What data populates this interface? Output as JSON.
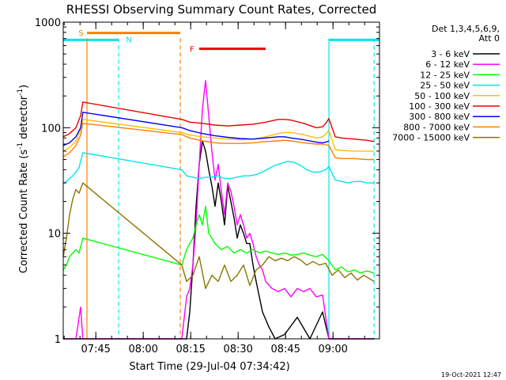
{
  "chart_data": {
    "type": "line",
    "title": "RHESSI Observing Summary Count Rates, Corrected",
    "xlabel": "Start Time (29-Jul-04 07:34:42)",
    "ylabel_main": "Corrected Count Rate (s",
    "ylabel_sup1": "-1",
    "ylabel_mid": " detector",
    "ylabel_sup2": "-1",
    "ylabel_end": ")",
    "yscale": "log",
    "ylim": [
      1,
      1000
    ],
    "xlim_minutes": [
      0,
      100
    ],
    "x_unit": "minutes after 07:34:42",
    "y_ticks": [
      {
        "value": 1,
        "label": "1"
      },
      {
        "value": 10,
        "label": "10"
      },
      {
        "value": 100,
        "label": "100"
      },
      {
        "value": 1000,
        "label": "1000"
      }
    ],
    "x_ticks": [
      {
        "minute": 10.3,
        "label": "07:45"
      },
      {
        "minute": 25.3,
        "label": "08:00"
      },
      {
        "minute": 40.3,
        "label": "08:15"
      },
      {
        "minute": 55.3,
        "label": "08:30"
      },
      {
        "minute": 70.3,
        "label": "08:45"
      },
      {
        "minute": 85.3,
        "label": "09:00"
      }
    ],
    "legend_header": [
      "Det 1,3,4,5,6,9,",
      "Att 0"
    ],
    "legend_position": "right",
    "footer_date": "19-Oct-2021 12:47",
    "flag_bars": [
      {
        "label": "S",
        "color": "#ff7f00",
        "start": 7.5,
        "end": 37.0,
        "level": 790
      },
      {
        "label": "N",
        "color": "#00e5ee",
        "start": 0,
        "end": 17.5,
        "level": 680
      },
      {
        "label": "N",
        "color": "#00e5ee",
        "start": 84.0,
        "end": 100,
        "level": 680
      },
      {
        "label": "F",
        "color": "#ee0000",
        "start": 43.0,
        "end": 64.0,
        "level": 560
      }
    ],
    "flag_labels": [
      {
        "text": "S",
        "color": "#ff7f00",
        "minute": 4.8,
        "level": 800
      },
      {
        "text": "N",
        "color": "#00e5ee",
        "minute": 19.8,
        "level": 690
      },
      {
        "text": "F",
        "color": "#ee0000",
        "minute": 40.0,
        "level": 560
      }
    ],
    "vertical_markers": [
      {
        "minute": 7.5,
        "color": "#ff7f00",
        "dashed": false
      },
      {
        "minute": 17.5,
        "color": "#00e5ee",
        "dashed": true
      },
      {
        "minute": 37.0,
        "color": "#ff7f00",
        "dashed": true
      },
      {
        "minute": 84.0,
        "color": "#00e5ee",
        "dashed": false
      },
      {
        "minute": 98.3,
        "color": "#00e5ee",
        "dashed": true
      }
    ],
    "series": [
      {
        "name": "3 - 6 keV",
        "color": "#000000",
        "x": [
          0,
          2,
          4,
          5.5,
          6.2,
          37.5,
          39,
          40,
          41,
          42,
          43,
          44,
          45,
          46,
          47,
          48,
          49,
          50,
          51,
          52,
          53,
          54,
          55,
          56,
          57,
          58,
          59,
          60,
          61,
          62,
          63,
          65,
          67,
          70,
          74,
          78,
          82,
          84,
          86,
          88,
          90,
          92,
          94,
          96,
          98.3
        ],
        "y": [
          1,
          1,
          1,
          1,
          1,
          1,
          1,
          1.8,
          5,
          18,
          45,
          75,
          60,
          40,
          28,
          18,
          30,
          20,
          12,
          28,
          20,
          14,
          9,
          12,
          10,
          8,
          8,
          5,
          3.5,
          2.5,
          1.8,
          1.3,
          1,
          1.1,
          1.6,
          1,
          1.8,
          1,
          1,
          1,
          1,
          1,
          1,
          1,
          1
        ]
      },
      {
        "name": "6 - 12 keV",
        "color": "#ff00ff",
        "x": [
          0,
          4,
          5.5,
          6.2,
          37.5,
          39,
          40,
          41,
          42,
          43,
          44,
          45,
          46,
          47,
          48,
          49,
          50,
          51,
          52,
          53,
          54,
          55,
          56,
          57,
          58,
          59,
          60,
          61,
          62,
          63,
          64,
          66,
          68,
          70,
          72,
          74,
          76,
          78,
          80,
          82,
          84,
          86,
          88,
          90,
          92,
          94,
          96,
          98.3
        ],
        "y": [
          1,
          1,
          2,
          1,
          1,
          2.5,
          3,
          5,
          12,
          45,
          150,
          280,
          130,
          60,
          32,
          45,
          25,
          15,
          30,
          25,
          18,
          12,
          15,
          12,
          9,
          10,
          8,
          6,
          5,
          4.5,
          3.5,
          3,
          2.8,
          3,
          2.5,
          3,
          2.8,
          3,
          2.5,
          2.6,
          1,
          1,
          1,
          1,
          1,
          1,
          1,
          1
        ]
      },
      {
        "name": "12 - 25 keV",
        "color": "#00ff00",
        "x": [
          0,
          1,
          2,
          3,
          4,
          5,
          6.2,
          37.5,
          39,
          40,
          41,
          42,
          43,
          44,
          45,
          46,
          47,
          48,
          50,
          52,
          54,
          56,
          58,
          60,
          62,
          64,
          66,
          68,
          70,
          72,
          74,
          76,
          78,
          80,
          82,
          84,
          86,
          88,
          90,
          92,
          94,
          96,
          98.3
        ],
        "y": [
          4.5,
          5,
          6,
          6.5,
          7,
          6.5,
          9,
          5,
          7,
          8,
          9,
          12,
          15,
          12,
          18,
          10,
          9,
          8,
          7,
          7.5,
          6.5,
          7,
          6.5,
          7,
          6.5,
          6.8,
          6.5,
          6.3,
          6.5,
          6.2,
          6.3,
          6.5,
          6.2,
          6,
          6.3,
          5.5,
          4.5,
          4.8,
          4.3,
          4.5,
          4.2,
          4.4,
          4.2
        ]
      },
      {
        "name": "25 - 50 keV",
        "color": "#00e5ee",
        "x": [
          0,
          1,
          2,
          3,
          4,
          5,
          5.5,
          6.2,
          37.5,
          39,
          41,
          43,
          45,
          47,
          49,
          51,
          53,
          55,
          57,
          59,
          61,
          63,
          65,
          67,
          69,
          71,
          73,
          75,
          77,
          79,
          81,
          82,
          83,
          84,
          86,
          88,
          90,
          92,
          94,
          96,
          98.3
        ],
        "y": [
          30,
          31,
          33,
          35,
          38,
          42,
          48,
          58,
          40,
          35,
          34,
          33,
          34,
          34,
          35,
          33,
          33,
          34,
          35,
          35,
          36,
          38,
          41,
          44,
          46,
          48,
          47,
          44,
          40,
          38,
          38,
          39,
          40,
          43,
          32,
          31,
          30,
          31,
          31,
          30,
          30
        ]
      },
      {
        "name": "50 - 100 keV",
        "color": "#ffbf00",
        "x": [
          0,
          2,
          4,
          5.5,
          6.2,
          37.5,
          40,
          44,
          48,
          52,
          56,
          60,
          64,
          68,
          70,
          72,
          76,
          80,
          82,
          83,
          84,
          86,
          88,
          92,
          96,
          98.3
        ],
        "y": [
          60,
          65,
          75,
          95,
          120,
          90,
          85,
          82,
          80,
          78,
          77,
          78,
          82,
          88,
          90,
          90,
          86,
          80,
          82,
          87,
          95,
          62,
          61,
          60,
          60,
          60
        ]
      },
      {
        "name": "100 - 300 keV",
        "color": "#ee0000",
        "x": [
          0,
          2,
          4,
          5.5,
          6.2,
          37.5,
          40,
          44,
          48,
          52,
          56,
          60,
          64,
          68,
          70,
          72,
          76,
          80,
          82,
          83,
          84,
          86,
          88,
          92,
          96,
          98.3
        ],
        "y": [
          82,
          88,
          100,
          130,
          175,
          120,
          113,
          110,
          106,
          104,
          106,
          108,
          113,
          120,
          120,
          118,
          110,
          100,
          102,
          110,
          122,
          82,
          80,
          78,
          76,
          74
        ]
      },
      {
        "name": "300 - 800 keV",
        "color": "#0000ff",
        "x": [
          0,
          2,
          4,
          5.5,
          6.2,
          37.5,
          40,
          44,
          48,
          52,
          56,
          60,
          64,
          68,
          70,
          72,
          76,
          80,
          82,
          83,
          84
        ],
        "y": [
          68,
          72,
          82,
          100,
          140,
          100,
          94,
          88,
          84,
          81,
          79,
          78,
          80,
          82,
          82,
          80,
          77,
          73,
          72,
          73,
          75
        ]
      },
      {
        "name": "800 - 7000 keV",
        "color": "#ff7f00",
        "x": [
          0,
          2,
          4,
          5.5,
          6.2,
          37.5,
          40,
          44,
          48,
          52,
          56,
          60,
          64,
          68,
          70,
          72,
          76,
          80,
          82,
          84,
          86,
          88,
          92,
          96,
          98.3
        ],
        "y": [
          53,
          58,
          68,
          85,
          110,
          86,
          80,
          75,
          72,
          71,
          71,
          72,
          74,
          75,
          76,
          75,
          72,
          70,
          70,
          68,
          52,
          51,
          51,
          50,
          50
        ]
      },
      {
        "name": "7000 - 15000 keV",
        "color": "#8b7500",
        "x": [
          0,
          1,
          2,
          3,
          4,
          5,
          6.2,
          37.5,
          39,
          41,
          43,
          45,
          47,
          49,
          51,
          53,
          55,
          57,
          59,
          61,
          63,
          65,
          67,
          69,
          71,
          73,
          75,
          77,
          79,
          81,
          83,
          85,
          87,
          89,
          91,
          93,
          95,
          98.3
        ],
        "y": [
          6,
          9,
          15,
          21,
          26,
          24,
          30,
          5,
          3.5,
          4,
          6,
          3,
          4,
          3.5,
          5,
          3.5,
          4,
          5,
          3.2,
          4.5,
          5,
          6,
          5.5,
          5.8,
          5.5,
          6,
          5.6,
          5,
          5.4,
          5,
          5.2,
          4,
          4.5,
          3.8,
          4.2,
          3.6,
          4,
          3.5
        ]
      }
    ]
  }
}
